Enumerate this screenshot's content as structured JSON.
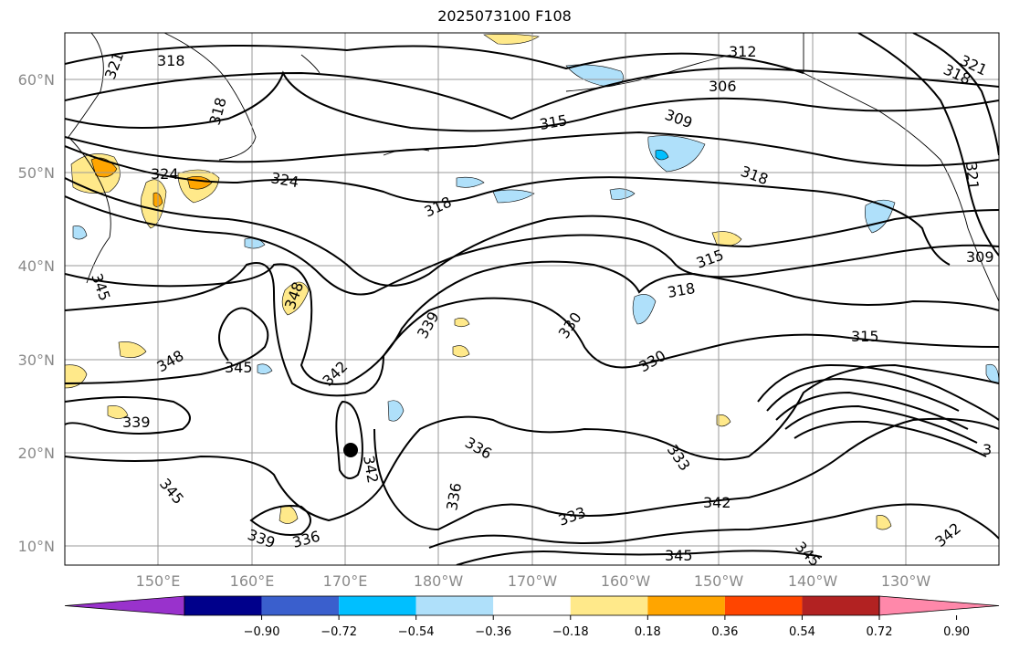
{
  "title": "2025073100 F108",
  "map": {
    "lat_ticks": [
      "60°N",
      "50°N",
      "40°N",
      "30°N",
      "20°N",
      "10°N"
    ],
    "lon_ticks": [
      "150°E",
      "160°E",
      "170°E",
      "180°W",
      "170°W",
      "160°W",
      "150°W",
      "140°W",
      "130°W"
    ],
    "contour_labels": [
      "318",
      "321",
      "318",
      "324",
      "324",
      "318",
      "315",
      "312",
      "306",
      "309",
      "318",
      "321",
      "318",
      "321",
      "315",
      "318",
      "309",
      "345",
      "348",
      "348",
      "345",
      "339",
      "342",
      "339",
      "330",
      "330",
      "315",
      "336",
      "342",
      "333",
      "336",
      "333",
      "342",
      "345",
      "345",
      "339",
      "336",
      "345",
      "342",
      "3"
    ],
    "marker": "storm-center-dot"
  },
  "colorbar": {
    "colors": [
      "#9932cc",
      "#00008b",
      "#3a5fcd",
      "#00bfff",
      "#afe0fa",
      "#ffffff",
      "#ffe98a",
      "#ffa500",
      "#ff4500",
      "#b22222",
      "#ff88aa"
    ],
    "tick_labels": [
      "−0.90",
      "−0.72",
      "−0.54",
      "−0.36",
      "−0.18",
      "0.18",
      "0.36",
      "0.54",
      "0.72",
      "0.90"
    ]
  }
}
